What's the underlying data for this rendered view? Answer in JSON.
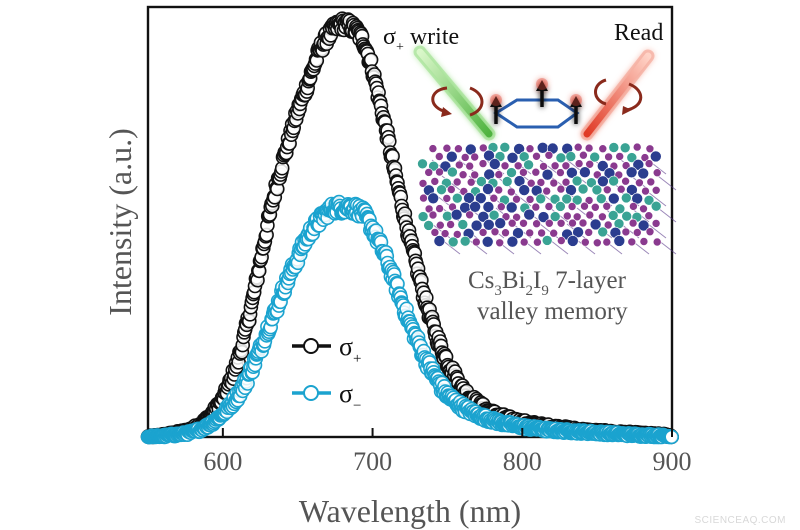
{
  "chart_data": {
    "type": "scatter",
    "xlabel": "Wavelength (nm)",
    "ylabel": "Intensity (a.u.)",
    "xlim": [
      550,
      900
    ],
    "ylim": [
      0,
      1.03
    ],
    "xticks": [
      600,
      700,
      800,
      900
    ],
    "grid": false,
    "legend_position": "center-left",
    "series": [
      {
        "name": "σ+",
        "name_base": "σ",
        "name_sub": "+",
        "color": "#111111",
        "peak_x": 680,
        "peak_y": 0.99,
        "x": [
          550,
          555,
          560,
          565,
          570,
          575,
          580,
          585,
          590,
          595,
          600,
          605,
          610,
          615,
          620,
          625,
          630,
          635,
          640,
          645,
          650,
          655,
          660,
          665,
          670,
          675,
          680,
          685,
          690,
          695,
          700,
          705,
          710,
          715,
          720,
          725,
          730,
          735,
          740,
          745,
          750,
          755,
          760,
          765,
          770,
          775,
          780,
          785,
          790,
          795,
          800,
          805,
          810,
          815,
          820,
          825,
          830,
          835,
          840,
          845,
          850,
          855,
          860,
          865,
          870,
          875,
          880,
          885,
          890,
          895,
          900
        ],
        "y": [
          0.0,
          0.002,
          0.004,
          0.007,
          0.01,
          0.014,
          0.02,
          0.03,
          0.045,
          0.065,
          0.09,
          0.13,
          0.18,
          0.25,
          0.33,
          0.42,
          0.51,
          0.59,
          0.66,
          0.72,
          0.78,
          0.83,
          0.88,
          0.93,
          0.96,
          0.98,
          0.99,
          0.985,
          0.97,
          0.94,
          0.88,
          0.8,
          0.72,
          0.63,
          0.55,
          0.47,
          0.4,
          0.33,
          0.27,
          0.22,
          0.18,
          0.145,
          0.115,
          0.095,
          0.08,
          0.067,
          0.057,
          0.05,
          0.044,
          0.039,
          0.035,
          0.032,
          0.029,
          0.026,
          0.024,
          0.022,
          0.02,
          0.018,
          0.016,
          0.014,
          0.013,
          0.012,
          0.011,
          0.01,
          0.009,
          0.008,
          0.007,
          0.006,
          0.005,
          0.004,
          0.003
        ]
      },
      {
        "name": "σ−",
        "name_base": "σ",
        "name_sub": "−",
        "color": "#1ba3cf",
        "peak_x": 685,
        "peak_y": 0.55,
        "x": [
          550,
          555,
          560,
          565,
          570,
          575,
          580,
          585,
          590,
          595,
          600,
          605,
          610,
          615,
          620,
          625,
          630,
          635,
          640,
          645,
          650,
          655,
          660,
          665,
          670,
          675,
          680,
          685,
          690,
          695,
          700,
          705,
          710,
          715,
          720,
          725,
          730,
          735,
          740,
          745,
          750,
          755,
          760,
          765,
          770,
          775,
          780,
          785,
          790,
          795,
          800,
          805,
          810,
          815,
          820,
          825,
          830,
          835,
          840,
          845,
          850,
          855,
          860,
          865,
          870,
          875,
          880,
          885,
          890,
          895,
          900
        ],
        "y": [
          0.0,
          0.001,
          0.002,
          0.004,
          0.006,
          0.008,
          0.012,
          0.018,
          0.027,
          0.04,
          0.055,
          0.075,
          0.1,
          0.13,
          0.17,
          0.21,
          0.26,
          0.3,
          0.35,
          0.39,
          0.43,
          0.47,
          0.5,
          0.52,
          0.54,
          0.55,
          0.55,
          0.55,
          0.545,
          0.53,
          0.5,
          0.46,
          0.42,
          0.37,
          0.32,
          0.27,
          0.23,
          0.19,
          0.155,
          0.125,
          0.1,
          0.085,
          0.072,
          0.062,
          0.053,
          0.046,
          0.04,
          0.035,
          0.031,
          0.028,
          0.025,
          0.022,
          0.02,
          0.018,
          0.016,
          0.015,
          0.014,
          0.013,
          0.012,
          0.011,
          0.01,
          0.009,
          0.008,
          0.007,
          0.006,
          0.005,
          0.004,
          0.004,
          0.003,
          0.002,
          0.001
        ]
      }
    ]
  },
  "inset": {
    "write_label_base": "σ",
    "write_label_sub": "+",
    "write_label_rest": " write",
    "read_label": "Read",
    "caption_line1": {
      "cs": "Cs",
      "s1": "3",
      "bi": "Bi",
      "s2": "2",
      "i": "I",
      "s3": "9",
      "rest": " 7-layer"
    },
    "caption_line2": "valley memory",
    "write_beam_color": "#55c24a",
    "read_beam_color": "#e8402a",
    "arrow_color": "#8a2a1c",
    "hexagon_color": "#2a5fb0",
    "spin_arrow_color": "#111111",
    "spin_glow_color": "#e8402a",
    "atom_colors": {
      "cs": "#3aa394",
      "bi": "#2b3d8f",
      "i": "#8a3a8f"
    }
  },
  "watermark": "SCIENCEAQ.COM"
}
